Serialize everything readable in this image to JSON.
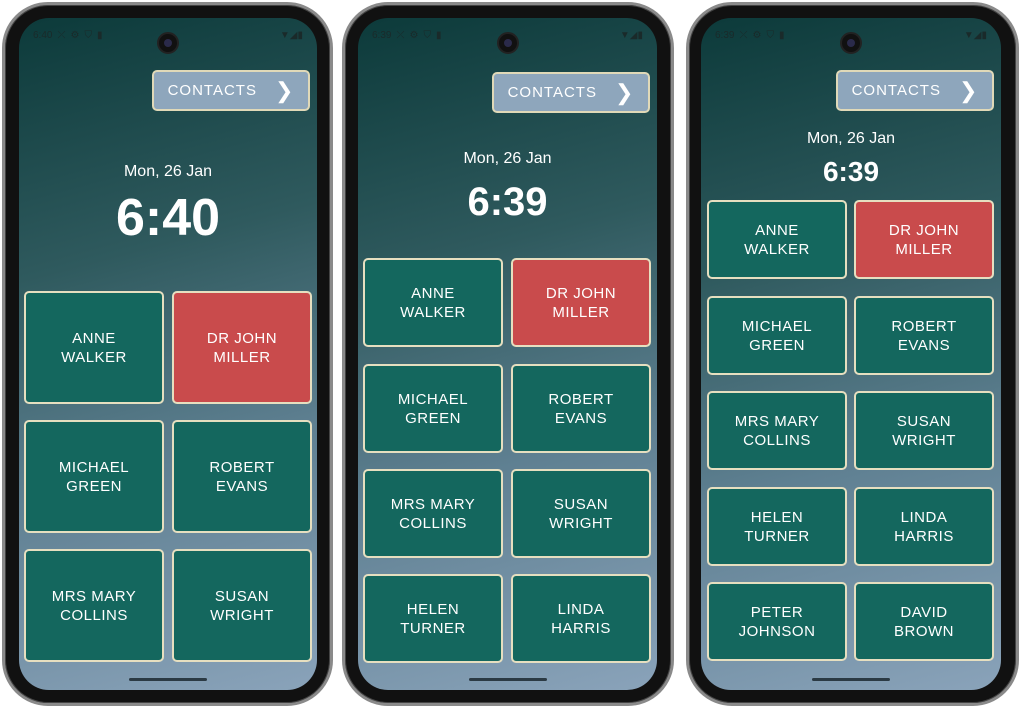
{
  "colors": {
    "tile": "#14675e",
    "tile_alert": "#c94b4c",
    "tile_border": "#e6dfc0",
    "contacts_button": "#8ea6bc"
  },
  "screens": [
    {
      "status_time": "6:40",
      "status_icons": [
        "missed-call-icon",
        "gear-icon",
        "shield-icon",
        "sim-icon"
      ],
      "status_right_icons": [
        "wifi-icon",
        "signal-icon",
        "battery-icon"
      ],
      "contacts_label": "CONTACTS",
      "date": "Mon, 26 Jan",
      "time": "6:40",
      "tiles": [
        {
          "name": "ANNE\nWALKER",
          "alert": false
        },
        {
          "name": "DR JOHN\nMILLER",
          "alert": true
        },
        {
          "name": "MICHAEL\nGREEN",
          "alert": false
        },
        {
          "name": "ROBERT\nEVANS",
          "alert": false
        },
        {
          "name": "MRS MARY\nCOLLINS",
          "alert": false
        },
        {
          "name": "SUSAN\nWRIGHT",
          "alert": false
        }
      ]
    },
    {
      "status_time": "6:39",
      "status_icons": [
        "missed-call-icon",
        "gear-icon",
        "shield-icon",
        "sim-icon"
      ],
      "status_right_icons": [
        "wifi-icon",
        "signal-icon",
        "battery-icon"
      ],
      "contacts_label": "CONTACTS",
      "date": "Mon, 26 Jan",
      "time": "6:39",
      "tiles": [
        {
          "name": "ANNE\nWALKER",
          "alert": false
        },
        {
          "name": "DR JOHN\nMILLER",
          "alert": true
        },
        {
          "name": "MICHAEL\nGREEN",
          "alert": false
        },
        {
          "name": "ROBERT\nEVANS",
          "alert": false
        },
        {
          "name": "MRS MARY\nCOLLINS",
          "alert": false
        },
        {
          "name": "SUSAN\nWRIGHT",
          "alert": false
        },
        {
          "name": "HELEN\nTURNER",
          "alert": false
        },
        {
          "name": "LINDA\nHARRIS",
          "alert": false
        }
      ]
    },
    {
      "status_time": "6:39",
      "status_icons": [
        "missed-call-icon",
        "gear-icon",
        "shield-icon",
        "sim-icon"
      ],
      "status_right_icons": [
        "wifi-icon",
        "signal-icon",
        "battery-icon"
      ],
      "contacts_label": "CONTACTS",
      "date": "Mon, 26 Jan",
      "time": "6:39",
      "tiles": [
        {
          "name": "ANNE\nWALKER",
          "alert": false
        },
        {
          "name": "DR JOHN\nMILLER",
          "alert": true
        },
        {
          "name": "MICHAEL\nGREEN",
          "alert": false
        },
        {
          "name": "ROBERT\nEVANS",
          "alert": false
        },
        {
          "name": "MRS MARY\nCOLLINS",
          "alert": false
        },
        {
          "name": "SUSAN\nWRIGHT",
          "alert": false
        },
        {
          "name": "HELEN\nTURNER",
          "alert": false
        },
        {
          "name": "LINDA\nHARRIS",
          "alert": false
        },
        {
          "name": "PETER\nJOHNSON",
          "alert": false
        },
        {
          "name": "DAVID\nBROWN",
          "alert": false
        }
      ]
    }
  ]
}
